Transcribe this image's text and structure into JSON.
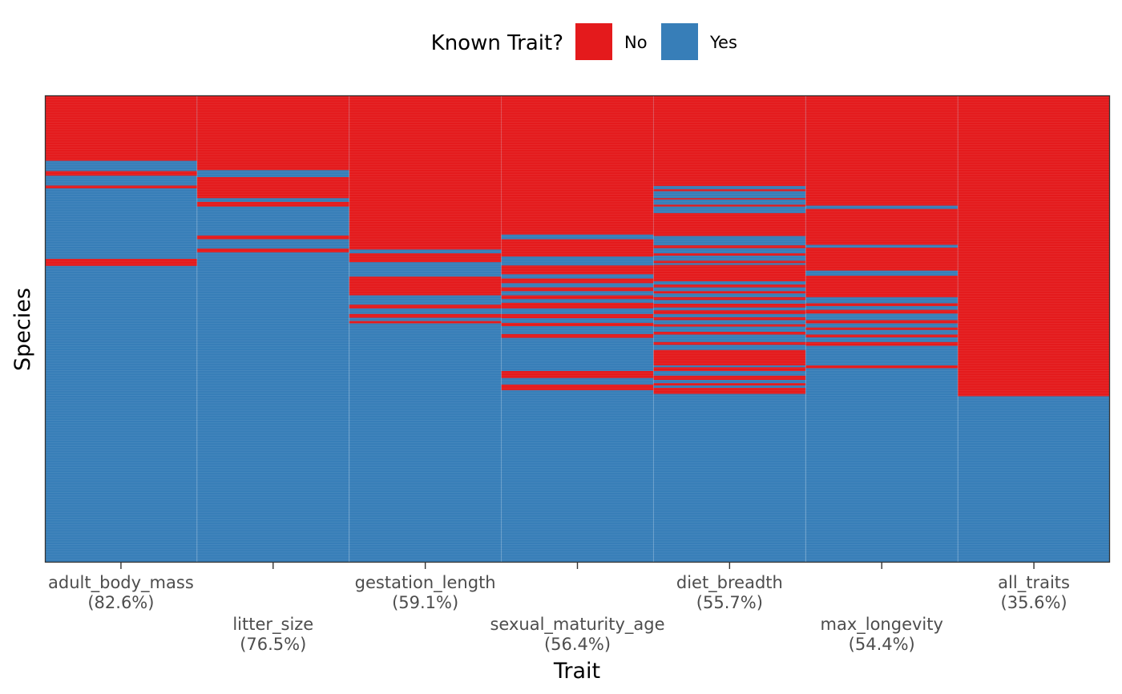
{
  "chart_data": {
    "type": "heatmap",
    "title": "",
    "xlabel": "Trait",
    "ylabel": "Species",
    "legend": {
      "title": "Known Trait?",
      "placement": "top",
      "entries": [
        {
          "label": "No",
          "color": "#E41A1C"
        },
        {
          "label": "Yes",
          "color": "#377EB8"
        }
      ]
    },
    "traits": [
      {
        "name": "adult_body_mass",
        "pct_label": "(82.6%)",
        "known_fraction": 0.826,
        "missing_ranges": [
          [
            0.0,
            0.14
          ],
          [
            0.162,
            0.172
          ],
          [
            0.193,
            0.199
          ],
          [
            0.35,
            0.365
          ]
        ]
      },
      {
        "name": "litter_size",
        "pct_label": "(76.5%)",
        "known_fraction": 0.765,
        "missing_ranges": [
          [
            0.0,
            0.16
          ],
          [
            0.175,
            0.22
          ],
          [
            0.228,
            0.238
          ],
          [
            0.3,
            0.308
          ],
          [
            0.328,
            0.336
          ]
        ]
      },
      {
        "name": "gestation_length",
        "pct_label": "(59.1%)",
        "known_fraction": 0.591,
        "missing_ranges": [
          [
            0.0,
            0.33
          ],
          [
            0.338,
            0.357
          ],
          [
            0.388,
            0.428
          ],
          [
            0.448,
            0.456
          ],
          [
            0.468,
            0.476
          ],
          [
            0.483,
            0.488
          ]
        ]
      },
      {
        "name": "sexual_maturity_age",
        "pct_label": "(56.4%)",
        "known_fraction": 0.564,
        "missing_ranges": [
          [
            0.0,
            0.298
          ],
          [
            0.308,
            0.345
          ],
          [
            0.364,
            0.383
          ],
          [
            0.392,
            0.402
          ],
          [
            0.411,
            0.419
          ],
          [
            0.428,
            0.436
          ],
          [
            0.444,
            0.456
          ],
          [
            0.468,
            0.477
          ],
          [
            0.487,
            0.494
          ],
          [
            0.511,
            0.519
          ],
          [
            0.59,
            0.605
          ],
          [
            0.619,
            0.631
          ]
        ]
      },
      {
        "name": "diet_breadth",
        "pct_label": "(55.7%)",
        "known_fraction": 0.557,
        "missing_ranges": [
          [
            0.0,
            0.194
          ],
          [
            0.201,
            0.205
          ],
          [
            0.22,
            0.223
          ],
          [
            0.234,
            0.238
          ],
          [
            0.252,
            0.301
          ],
          [
            0.321,
            0.327
          ],
          [
            0.338,
            0.343
          ],
          [
            0.354,
            0.359
          ],
          [
            0.363,
            0.398
          ],
          [
            0.405,
            0.411
          ],
          [
            0.419,
            0.424
          ],
          [
            0.432,
            0.438
          ],
          [
            0.446,
            0.454
          ],
          [
            0.46,
            0.468
          ],
          [
            0.475,
            0.481
          ],
          [
            0.49,
            0.495
          ],
          [
            0.506,
            0.512
          ],
          [
            0.528,
            0.534
          ],
          [
            0.545,
            0.578
          ],
          [
            0.582,
            0.59
          ],
          [
            0.6,
            0.609
          ],
          [
            0.616,
            0.621
          ],
          [
            0.626,
            0.639
          ]
        ]
      },
      {
        "name": "max_longevity",
        "pct_label": "(54.4%)",
        "known_fraction": 0.544,
        "missing_ranges": [
          [
            0.0,
            0.236
          ],
          [
            0.243,
            0.32
          ],
          [
            0.326,
            0.375
          ],
          [
            0.386,
            0.432
          ],
          [
            0.445,
            0.451
          ],
          [
            0.459,
            0.467
          ],
          [
            0.481,
            0.488
          ],
          [
            0.497,
            0.502
          ],
          [
            0.512,
            0.518
          ],
          [
            0.528,
            0.536
          ],
          [
            0.578,
            0.584
          ]
        ]
      },
      {
        "name": "all_traits",
        "pct_label": "(35.6%)",
        "known_fraction": 0.356,
        "missing_ranges": [
          [
            0.0,
            0.644
          ]
        ]
      }
    ],
    "grid": false
  }
}
